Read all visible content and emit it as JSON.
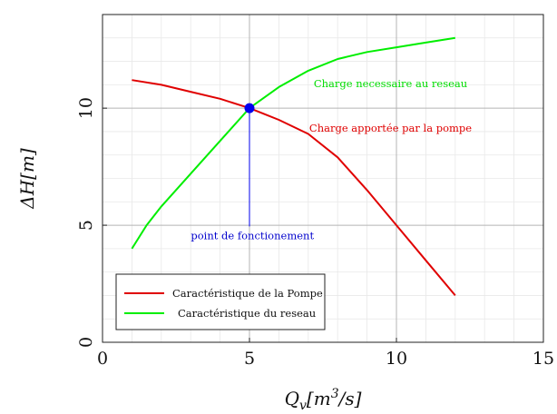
{
  "chart_data": {
    "type": "line",
    "xlabel": "Q_v[m^3/s]",
    "ylabel": "ΔH[m]",
    "xlim": [
      0,
      15
    ],
    "ylim": [
      0,
      14
    ],
    "x_ticks": [
      0,
      5,
      10,
      15
    ],
    "y_ticks": [
      0,
      5,
      10
    ],
    "grid": true,
    "legend": {
      "placement": "bottom-left",
      "entries": [
        "Caractéristique de la Pompe",
        "Caractéristique du reseau"
      ]
    },
    "series": [
      {
        "name": "Caractéristique de la Pompe",
        "color": "#e00000",
        "x": [
          1,
          2,
          3,
          4,
          5,
          6,
          7,
          8,
          9,
          10,
          11,
          12
        ],
        "y": [
          11.2,
          11.0,
          10.7,
          10.4,
          10.0,
          9.5,
          8.9,
          7.9,
          6.5,
          5.0,
          3.5,
          2.0
        ]
      },
      {
        "name": "Caractéristique du reseau",
        "color": "#00ee00",
        "x": [
          1,
          1.5,
          2,
          3,
          4,
          5,
          6,
          7,
          8,
          9,
          10,
          11,
          12
        ],
        "y": [
          4.0,
          5.0,
          5.8,
          7.2,
          8.6,
          10.0,
          10.9,
          11.6,
          12.1,
          12.4,
          12.6,
          12.8,
          13.0
        ]
      }
    ],
    "operating_point": {
      "x": 5,
      "y": 10,
      "color": "#0000ee"
    },
    "annotations": [
      {
        "text": "Charge necessaire au reseau",
        "x": 9.8,
        "y": 10.9,
        "color": "#00dd00"
      },
      {
        "text": "Charge apportée par la pompe",
        "x": 9.8,
        "y": 9.0,
        "color": "#e00000"
      },
      {
        "text": "point de fonctionement",
        "x": 5.1,
        "y": 4.4,
        "color": "#0000cc"
      }
    ]
  }
}
